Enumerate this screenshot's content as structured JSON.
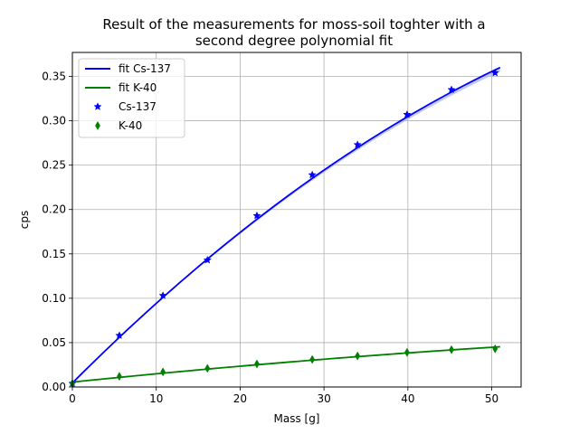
{
  "chart_data": {
    "type": "scatter",
    "title": [
      "Result of the measurements for moss-soil toghter with a",
      "second degree polynomial fit"
    ],
    "xlabel": "Mass [g]",
    "ylabel": "cps",
    "xlim": [
      0,
      53.5
    ],
    "ylim": [
      0,
      0.377
    ],
    "xticks": [
      0,
      10,
      20,
      30,
      40,
      50
    ],
    "xtick_labels": [
      "0",
      "10",
      "20",
      "30",
      "40",
      "50"
    ],
    "yticks": [
      0.0,
      0.05,
      0.1,
      0.15,
      0.2,
      0.25,
      0.3,
      0.35
    ],
    "ytick_labels": [
      "0.00",
      "0.05",
      "0.10",
      "0.15",
      "0.20",
      "0.25",
      "0.30",
      "0.35"
    ],
    "grid": true,
    "legend_position": "top-left",
    "fits": [
      {
        "name": "fit Cs-137",
        "color": "#0000ff",
        "band_color": "#aab2ff",
        "coefficients": [
          0.0045,
          0.00946,
          -4.88e-05
        ],
        "x_range": [
          0,
          51
        ]
      },
      {
        "name": "fit K-40",
        "color": "#008000",
        "band_color": "#88cc88",
        "coefficients": [
          0.0055,
          0.00097,
          -3.7e-06
        ],
        "x_range": [
          0,
          51
        ]
      }
    ],
    "series": [
      {
        "name": "Cs-137",
        "marker": "star",
        "color": "#0000ff",
        "points": [
          [
            0,
            0.004
          ],
          [
            5.6,
            0.058
          ],
          [
            10.8,
            0.103
          ],
          [
            16.1,
            0.143
          ],
          [
            22.0,
            0.193
          ],
          [
            28.6,
            0.239
          ],
          [
            34.0,
            0.273
          ],
          [
            39.9,
            0.307
          ],
          [
            45.2,
            0.335
          ],
          [
            50.4,
            0.354
          ]
        ]
      },
      {
        "name": "K-40",
        "marker": "thin_diamond",
        "color": "#008000",
        "points": [
          [
            0,
            0.004
          ],
          [
            5.6,
            0.012
          ],
          [
            10.8,
            0.017
          ],
          [
            16.1,
            0.021
          ],
          [
            22.0,
            0.026
          ],
          [
            28.6,
            0.031
          ],
          [
            34.0,
            0.035
          ],
          [
            39.9,
            0.039
          ],
          [
            45.2,
            0.042
          ],
          [
            50.4,
            0.043
          ]
        ]
      }
    ]
  }
}
